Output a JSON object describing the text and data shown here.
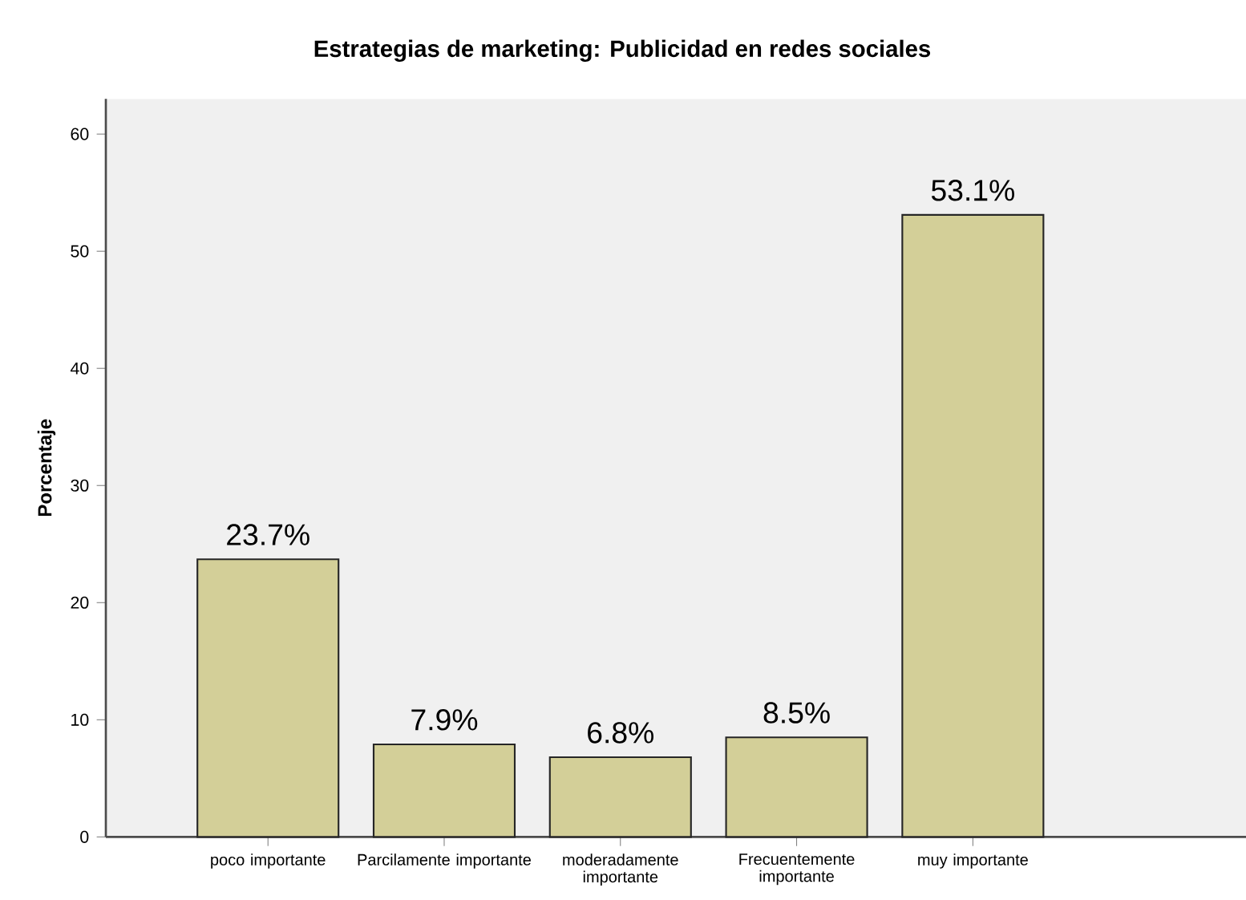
{
  "chart_data": {
    "type": "bar",
    "title": "Estrategias de marketing: Publicidad en redes sociales",
    "ylabel": "Porcentaje",
    "categories": [
      "poco importante",
      "Parcilamente importante",
      "moderadamente importante",
      "Frecuentemente importante",
      "muy importante"
    ],
    "values": [
      23.7,
      7.9,
      6.8,
      8.5,
      53.1
    ],
    "value_labels": [
      "23.7%",
      "7.9%",
      "6.8%",
      "8.5%",
      "53.1%"
    ],
    "color": "#d3cf98",
    "ylim": [
      0,
      63
    ],
    "yticks": [
      0,
      10,
      20,
      30,
      40,
      50,
      60
    ]
  }
}
